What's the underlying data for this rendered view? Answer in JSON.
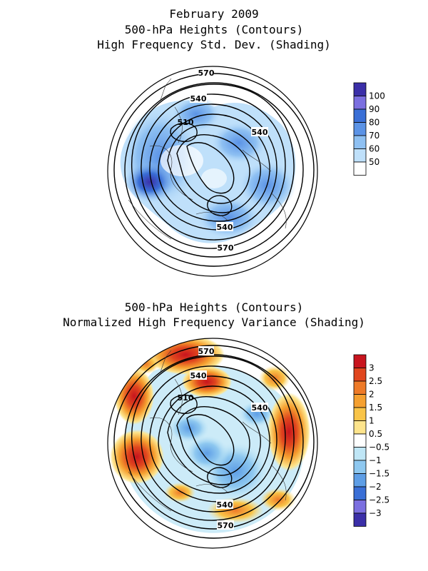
{
  "panel1": {
    "title_lines": [
      "February 2009",
      "500-hPa Heights (Contours)",
      "High Frequency Std. Dev. (Shading)"
    ],
    "contour_labels": [
      "570",
      "540",
      "510",
      "540",
      "540",
      "570"
    ],
    "colorbar": {
      "labels": [
        "100",
        "90",
        "80",
        "70",
        "60",
        "50"
      ],
      "colors": [
        "#3b2fa8",
        "#7b6fe0",
        "#3a6fd6",
        "#5b93e6",
        "#8ec0f2",
        "#bfe0fa",
        "#ffffff"
      ]
    }
  },
  "panel2": {
    "title_lines": [
      "500-hPa Heights (Contours)",
      "Normalized High Frequency Variance (Shading)"
    ],
    "contour_labels": [
      "570",
      "540",
      "510",
      "540",
      "540",
      "570"
    ],
    "colorbar": {
      "labels": [
        "3",
        "2.5",
        "2",
        "1.5",
        "1",
        "0.5",
        "−0.5",
        "−1",
        "−1.5",
        "−2",
        "−2.5",
        "−3"
      ],
      "colors": [
        "#c8141e",
        "#e0461e",
        "#ee7a28",
        "#f5a030",
        "#f9c448",
        "#fde48c",
        "#ffffff",
        "#bfe6f6",
        "#8ec8f0",
        "#5e9ee6",
        "#3a6fd6",
        "#7b6fe0",
        "#3b2fa8"
      ]
    }
  }
}
